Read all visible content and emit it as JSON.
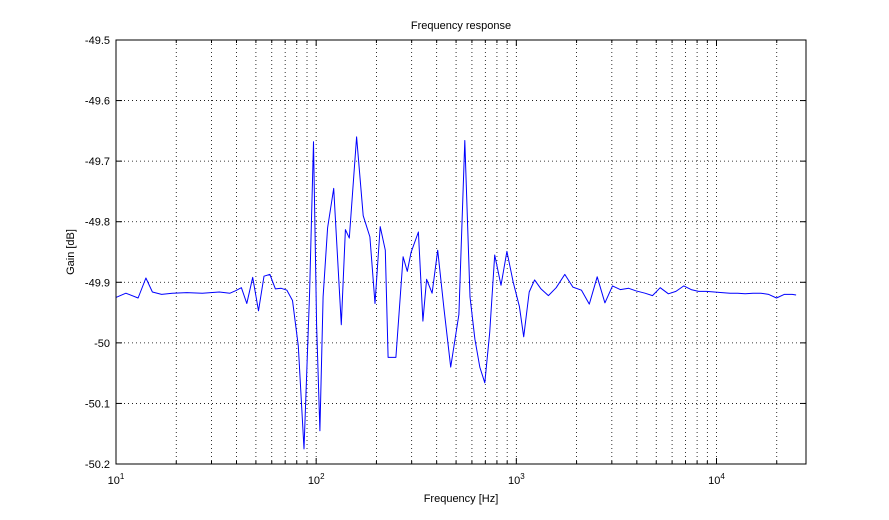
{
  "chart_data": {
    "type": "line",
    "title": "Frequency response",
    "xlabel": "Frequency [Hz]",
    "ylabel": "Gain [dB]",
    "xscale": "log",
    "xlim": [
      10,
      28000
    ],
    "ylim": [
      -50.2,
      -49.5
    ],
    "grid": true,
    "line_color": "#0000ff",
    "x_ticks": [
      {
        "value": 10,
        "base": "10",
        "exp": "1"
      },
      {
        "value": 100,
        "base": "10",
        "exp": "2"
      },
      {
        "value": 1000,
        "base": "10",
        "exp": "3"
      },
      {
        "value": 10000,
        "base": "10",
        "exp": "4"
      }
    ],
    "y_ticks": [
      {
        "value": -49.5,
        "label": "-49.5"
      },
      {
        "value": -49.6,
        "label": "-49.6"
      },
      {
        "value": -49.7,
        "label": "-49.7"
      },
      {
        "value": -49.8,
        "label": "-49.8"
      },
      {
        "value": -49.9,
        "label": "-49.9"
      },
      {
        "value": -50.0,
        "label": "-50"
      },
      {
        "value": -50.1,
        "label": "-50.1"
      },
      {
        "value": -50.2,
        "label": "-50.2"
      }
    ],
    "series": [
      {
        "x": [
          10,
          11.2,
          12.9,
          14.1,
          15.2,
          16.9,
          19.1,
          22.6,
          27.0,
          32.8,
          37.1,
          39.5,
          42.3,
          45.0,
          48.2,
          51.5,
          54.9,
          58.7,
          62.6,
          66.9,
          71.4,
          76.2,
          81.4,
          86.9,
          92.7,
          97.0,
          100.5,
          104.4,
          108.3,
          114.0,
          122.4,
          133.5,
          140.0,
          146.4,
          159.2,
          171.8,
          185.5,
          196.8,
          208.9,
          221.6,
          228.8,
          250.1,
          271.7,
          285.4,
          297.6,
          324.3,
          341.5,
          356.4,
          379.4,
          404.6,
          435.3,
          470.2,
          516.7,
          552.9,
          587.0,
          620.9,
          657.1,
          695.4,
          736.4,
          779.4,
          838.5,
          897.5,
          963.6,
          1036.0,
          1088.2,
          1160.0,
          1234.5,
          1328.2,
          1446.6,
          1581.4,
          1747.3,
          1918.0,
          2115.8,
          2313.8,
          2533.8,
          2771.5,
          3024.5,
          3307.7,
          3642.4,
          3953.4,
          4393.9,
          4792.2,
          5233.4,
          5754.0,
          6270.7,
          6866.5,
          7479.4,
          8136.7,
          8918.2,
          9747.3,
          10651,
          11688,
          12762,
          13917,
          15226,
          16656,
          18241,
          19943,
          21780,
          23898,
          25000
        ],
        "y": [
          -49.925,
          -49.918,
          -49.926,
          -49.893,
          -49.916,
          -49.92,
          -49.918,
          -49.917,
          -49.918,
          -49.916,
          -49.918,
          -49.914,
          -49.909,
          -49.935,
          -49.892,
          -49.947,
          -49.89,
          -49.887,
          -49.911,
          -49.91,
          -49.913,
          -49.93,
          -50.005,
          -50.175,
          -49.917,
          -49.668,
          -49.97,
          -50.145,
          -49.924,
          -49.81,
          -49.745,
          -49.97,
          -49.813,
          -49.827,
          -49.66,
          -49.79,
          -49.825,
          -49.935,
          -49.808,
          -49.847,
          -50.024,
          -50.024,
          -49.858,
          -49.882,
          -49.851,
          -49.817,
          -49.964,
          -49.895,
          -49.918,
          -49.847,
          -49.944,
          -50.04,
          -49.953,
          -49.666,
          -49.924,
          -49.994,
          -50.04,
          -50.066,
          -49.983,
          -49.855,
          -49.905,
          -49.849,
          -49.899,
          -49.94,
          -49.99,
          -49.916,
          -49.896,
          -49.911,
          -49.922,
          -49.909,
          -49.887,
          -49.908,
          -49.913,
          -49.936,
          -49.891,
          -49.934,
          -49.906,
          -49.912,
          -49.91,
          -49.914,
          -49.918,
          -49.922,
          -49.909,
          -49.919,
          -49.915,
          -49.906,
          -49.912,
          -49.915,
          -49.915,
          -49.916,
          -49.917,
          -49.918,
          -49.918,
          -49.919,
          -49.918,
          -49.918,
          -49.92,
          -49.926,
          -49.92,
          -49.92,
          -49.921
        ]
      }
    ]
  }
}
